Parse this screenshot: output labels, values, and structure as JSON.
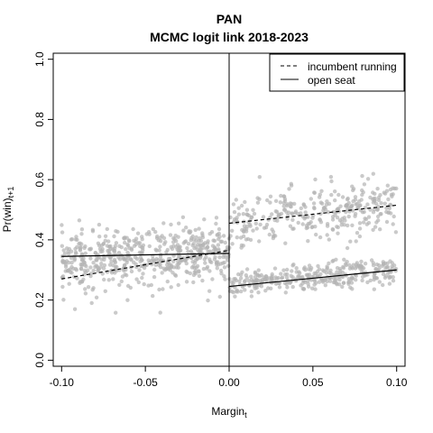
{
  "chart_data": {
    "type": "scatter",
    "title": "PAN",
    "subtitle": "MCMC logit link 2018-2023",
    "xlabel": "Margin",
    "xlabel_sub": "t",
    "ylabel": "Pr(win)",
    "ylabel_sub": "t+1",
    "xlim": [
      -0.105,
      0.105
    ],
    "ylim": [
      -0.02,
      1.02
    ],
    "x_ticks": [
      -0.1,
      -0.05,
      0.0,
      0.05,
      0.1
    ],
    "x_tick_labels": [
      "-0.10",
      "-0.05",
      "0.00",
      "0.05",
      "0.10"
    ],
    "y_ticks": [
      0.0,
      0.2,
      0.4,
      0.6,
      0.8,
      1.0
    ],
    "y_tick_labels": [
      "0.0",
      "0.2",
      "0.4",
      "0.6",
      "0.8",
      "1.0"
    ],
    "grid": false,
    "legend_position": "top-right",
    "cutoff_x": 0.0,
    "point_color": "#b4b4b4",
    "lines": [
      {
        "name": "incumbent running",
        "style": "dashed",
        "x": [
          -0.1,
          0.0
        ],
        "y": [
          0.27,
          0.365
        ]
      },
      {
        "name": "incumbent running",
        "style": "dashed",
        "x": [
          0.0,
          0.1
        ],
        "y": [
          0.455,
          0.515
        ]
      },
      {
        "name": "open seat",
        "style": "solid",
        "x": [
          -0.1,
          0.0
        ],
        "y": [
          0.345,
          0.355
        ]
      },
      {
        "name": "open seat",
        "style": "solid",
        "x": [
          0.0,
          0.1
        ],
        "y": [
          0.245,
          0.3
        ]
      }
    ],
    "legend": [
      {
        "label": "incumbent running",
        "style": "dashed"
      },
      {
        "label": "open seat",
        "style": "solid"
      }
    ],
    "point_clouds": [
      {
        "x_range": [
          -0.1,
          0.0
        ],
        "y_start": 0.34,
        "y_end": 0.36,
        "spread": 0.04,
        "count": 380
      },
      {
        "x_range": [
          -0.1,
          0.0
        ],
        "y_start": 0.27,
        "y_end": 0.37,
        "spread": 0.06,
        "count": 180
      },
      {
        "x_range": [
          0.0,
          0.1
        ],
        "y_start": 0.455,
        "y_end": 0.52,
        "spread": 0.045,
        "count": 320
      },
      {
        "x_range": [
          0.0,
          0.1
        ],
        "y_start": 0.25,
        "y_end": 0.3,
        "spread": 0.022,
        "count": 340
      }
    ]
  }
}
